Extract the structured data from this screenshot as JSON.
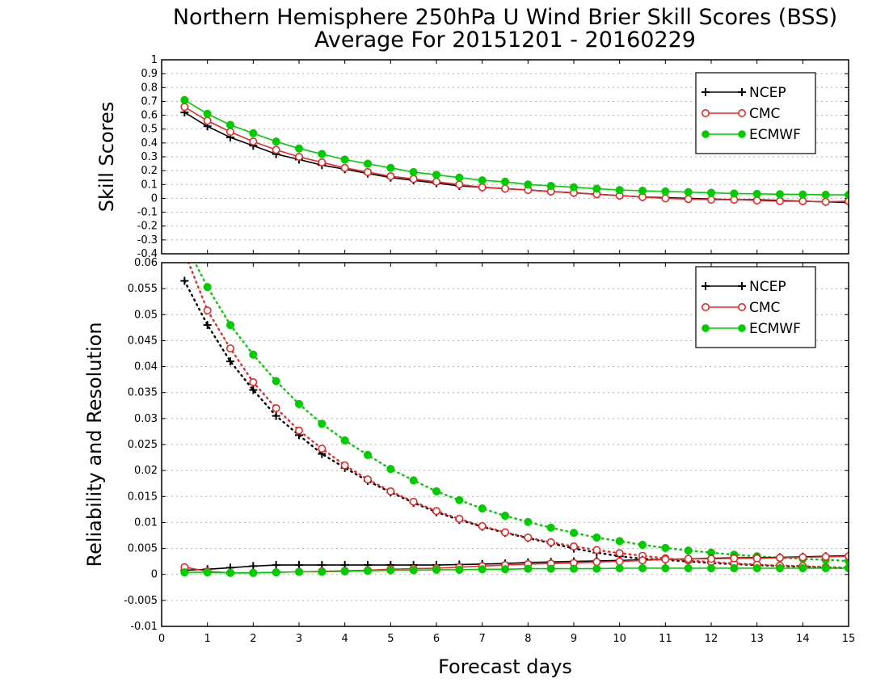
{
  "title_line1": "Northern Hemisphere 250hPa U Wind Brier Skill Scores (BSS)",
  "title_line2": "Average For 20151201 - 20160229",
  "xlabel": "Forecast days",
  "colors": {
    "NCEP": "#000000",
    "CMC": "#e8292b",
    "ECMWF": "#00cc00"
  },
  "chart_data": [
    {
      "type": "line",
      "name": "Skill Scores panel",
      "ylabel": "Skill Scores",
      "xlim": [
        0,
        15
      ],
      "ylim": [
        -0.4,
        1
      ],
      "x_ticks": [
        "0",
        "1",
        "2",
        "3",
        "4",
        "5",
        "6",
        "7",
        "8",
        "9",
        "10",
        "11",
        "12",
        "13",
        "14",
        "15"
      ],
      "y_ticks": [
        "-0.4",
        "-0.3",
        "-0.2",
        "-0.1",
        "0",
        "0.1",
        "0.2",
        "0.3",
        "0.4",
        "0.5",
        "0.6",
        "0.7",
        "0.8",
        "0.9",
        "1"
      ],
      "legend": [
        "NCEP",
        "CMC",
        "ECMWF"
      ],
      "legend_position": "top-right",
      "x": [
        0.5,
        1,
        1.5,
        2,
        2.5,
        3,
        3.5,
        4,
        4.5,
        5,
        5.5,
        6,
        6.5,
        7,
        7.5,
        8,
        8.5,
        9,
        9.5,
        10,
        10.5,
        11,
        11.5,
        12,
        12.5,
        13,
        13.5,
        14,
        14.5,
        15
      ],
      "series": [
        {
          "name": "NCEP",
          "style": "line",
          "marker": "plus",
          "values": [
            0.62,
            0.52,
            0.44,
            0.38,
            0.32,
            0.28,
            0.24,
            0.21,
            0.18,
            0.15,
            0.13,
            0.11,
            0.09,
            0.08,
            0.07,
            0.06,
            0.05,
            0.04,
            0.03,
            0.02,
            0.01,
            0.005,
            0.0,
            -0.005,
            -0.01,
            -0.01,
            -0.015,
            -0.02,
            -0.025,
            -0.03
          ]
        },
        {
          "name": "CMC",
          "style": "line",
          "marker": "open-circle",
          "values": [
            0.66,
            0.56,
            0.48,
            0.41,
            0.35,
            0.3,
            0.26,
            0.22,
            0.19,
            0.16,
            0.14,
            0.12,
            0.1,
            0.08,
            0.07,
            0.06,
            0.05,
            0.04,
            0.03,
            0.02,
            0.01,
            0.0,
            -0.005,
            -0.01,
            -0.01,
            -0.015,
            -0.02,
            -0.02,
            -0.025,
            -0.02
          ]
        },
        {
          "name": "ECMWF",
          "style": "line",
          "marker": "filled-circle",
          "values": [
            0.71,
            0.61,
            0.53,
            0.47,
            0.41,
            0.36,
            0.32,
            0.28,
            0.25,
            0.22,
            0.19,
            0.17,
            0.15,
            0.13,
            0.12,
            0.1,
            0.09,
            0.08,
            0.07,
            0.06,
            0.055,
            0.05,
            0.045,
            0.04,
            0.035,
            0.033,
            0.03,
            0.028,
            0.026,
            0.025
          ]
        }
      ]
    },
    {
      "type": "line",
      "name": "Reliability and Resolution panel",
      "ylabel": "Reliability and Resolution",
      "xlim": [
        0,
        15
      ],
      "ylim": [
        -0.01,
        0.06
      ],
      "x_ticks": [
        "0",
        "1",
        "2",
        "3",
        "4",
        "5",
        "6",
        "7",
        "8",
        "9",
        "10",
        "11",
        "12",
        "13",
        "14",
        "15"
      ],
      "y_ticks": [
        "-0.01",
        "-0.005",
        "0",
        "0.005",
        "0.01",
        "0.015",
        "0.02",
        "0.025",
        "0.03",
        "0.035",
        "0.04",
        "0.045",
        "0.05",
        "0.055",
        "0.06"
      ],
      "legend": [
        "NCEP",
        "CMC",
        "ECMWF"
      ],
      "legend_position": "top-right",
      "x": [
        0.5,
        1,
        1.5,
        2,
        2.5,
        3,
        3.5,
        4,
        4.5,
        5,
        5.5,
        6,
        6.5,
        7,
        7.5,
        8,
        8.5,
        9,
        9.5,
        10,
        10.5,
        11,
        11.5,
        12,
        12.5,
        13,
        13.5,
        14,
        14.5,
        15
      ],
      "series": [
        {
          "name": "NCEP",
          "style": "dotted",
          "marker": "plus",
          "values": [
            0.0565,
            0.048,
            0.041,
            0.0355,
            0.0305,
            0.0268,
            0.0232,
            0.0205,
            0.018,
            0.0158,
            0.0138,
            0.012,
            0.0105,
            0.0092,
            0.008,
            0.007,
            0.006,
            0.005,
            0.0042,
            0.0035,
            0.003,
            0.0028,
            0.0025,
            0.0022,
            0.002,
            0.0018,
            0.0016,
            0.0015,
            0.0013,
            0.0012
          ]
        },
        {
          "name": "CMC",
          "style": "dotted",
          "marker": "open-circle",
          "values": [
            0.062,
            0.0508,
            0.0435,
            0.037,
            0.032,
            0.0277,
            0.0242,
            0.021,
            0.0183,
            0.016,
            0.014,
            0.0122,
            0.0107,
            0.0093,
            0.0081,
            0.0071,
            0.0062,
            0.0054,
            0.0047,
            0.0041,
            0.0036,
            0.0031,
            0.0027,
            0.0024,
            0.0021,
            0.0019,
            0.0017,
            0.0016,
            0.0014,
            0.0013
          ]
        },
        {
          "name": "ECMWF",
          "style": "dotted",
          "marker": "filled-circle",
          "values": [
            0.064,
            0.0553,
            0.048,
            0.0423,
            0.0372,
            0.0328,
            0.029,
            0.0258,
            0.023,
            0.0203,
            0.0181,
            0.016,
            0.0143,
            0.0127,
            0.0113,
            0.0101,
            0.009,
            0.008,
            0.0071,
            0.0064,
            0.0057,
            0.0051,
            0.0046,
            0.0042,
            0.0038,
            0.0035,
            0.0032,
            0.003,
            0.0028,
            0.0026
          ]
        },
        {
          "name": "NCEP",
          "style": "line",
          "marker": "plus",
          "values": [
            0.0008,
            0.001,
            0.0013,
            0.0016,
            0.0018,
            0.0018,
            0.0018,
            0.0018,
            0.0018,
            0.0018,
            0.0018,
            0.0018,
            0.0019,
            0.002,
            0.0021,
            0.0023,
            0.0024,
            0.0025,
            0.0026,
            0.0027,
            0.0028,
            0.0029,
            0.003,
            0.0031,
            0.0032,
            0.0032,
            0.0033,
            0.0034,
            0.0035,
            0.0036
          ]
        },
        {
          "name": "CMC",
          "style": "line",
          "marker": "open-circle",
          "values": [
            0.0014,
            0.0006,
            0.0003,
            0.0003,
            0.0004,
            0.0005,
            0.0006,
            0.0007,
            0.0008,
            0.001,
            0.0011,
            0.0012,
            0.0014,
            0.0016,
            0.0018,
            0.002,
            0.0021,
            0.0022,
            0.0024,
            0.0025,
            0.0027,
            0.0029,
            0.003,
            0.003,
            0.0031,
            0.0031,
            0.0032,
            0.0033,
            0.0034,
            0.0035
          ]
        },
        {
          "name": "ECMWF",
          "style": "line",
          "marker": "filled-circle",
          "values": [
            0.0004,
            0.0004,
            0.0003,
            0.0003,
            0.0004,
            0.0005,
            0.0005,
            0.0006,
            0.0007,
            0.0008,
            0.0008,
            0.0009,
            0.0009,
            0.001,
            0.001,
            0.0011,
            0.0011,
            0.0011,
            0.0011,
            0.0012,
            0.0012,
            0.0012,
            0.0012,
            0.0012,
            0.0012,
            0.0012,
            0.0012,
            0.0012,
            0.0012,
            0.0012
          ]
        }
      ]
    }
  ]
}
